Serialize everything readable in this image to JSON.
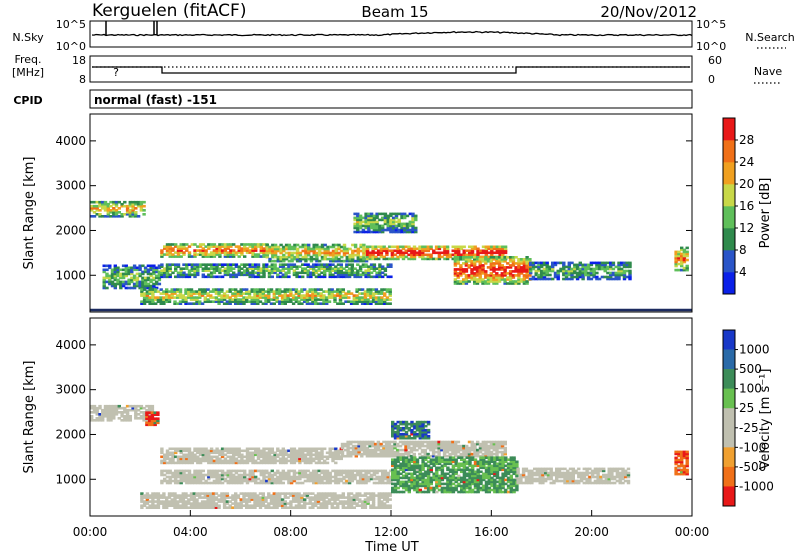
{
  "header": {
    "station": "Kerguelen (fitACF)",
    "beam": "Beam 15",
    "date": "20/Nov/2012"
  },
  "nsky_panel": {
    "left_label": "N.Sky",
    "right_label": "N.Search",
    "left_ticks": [
      "10^5",
      "10^0"
    ],
    "right_ticks": [
      "10^5",
      "10^0"
    ]
  },
  "freq_panel": {
    "left_label_line1": "Freq.",
    "left_label_line2": "[MHz]",
    "right_label": "Nave",
    "left_ticks": [
      "18",
      "8"
    ],
    "right_ticks": [
      "60",
      "0"
    ],
    "marker": "?"
  },
  "cpid": {
    "label": "CPID",
    "value": "normal (fast) -151"
  },
  "chart_data": [
    {
      "type": "heatmap",
      "name": "power",
      "ylabel": "Slant Range [km]",
      "yticks": [
        "1000",
        "2000",
        "3000",
        "4000"
      ],
      "ylim": [
        180,
        4600
      ],
      "xlim": [
        0,
        24
      ],
      "colorbar_label": "Power [dB]",
      "colorbar_ticks": [
        "4",
        "8",
        "12",
        "16",
        "20",
        "24",
        "28"
      ],
      "colorbar_colors": [
        "#0a20e8",
        "#2a55c8",
        "#2f8a4c",
        "#5fbf5a",
        "#c8d848",
        "#f0a020",
        "#f07018",
        "#e81818"
      ],
      "bands": [
        {
          "t0": 0.0,
          "t1": 2.2,
          "r0": 2300,
          "r1": 2650,
          "level": 0.6
        },
        {
          "t0": 0.5,
          "t1": 2.8,
          "r0": 700,
          "r1": 1200,
          "level": 0.4
        },
        {
          "t0": 2.8,
          "t1": 7.0,
          "r0": 1400,
          "r1": 1700,
          "level": 0.75
        },
        {
          "t0": 7.0,
          "t1": 11.0,
          "r0": 1300,
          "r1": 1700,
          "level": 0.6
        },
        {
          "t0": 11.0,
          "t1": 16.5,
          "r0": 1350,
          "r1": 1650,
          "level": 0.9
        },
        {
          "t0": 2.8,
          "t1": 12.0,
          "r0": 950,
          "r1": 1250,
          "level": 0.4
        },
        {
          "t0": 2.0,
          "t1": 12.0,
          "r0": 350,
          "r1": 700,
          "level": 0.55
        },
        {
          "t0": 14.5,
          "t1": 17.5,
          "r0": 800,
          "r1": 1400,
          "level": 0.85
        },
        {
          "t0": 17.5,
          "t1": 21.5,
          "r0": 900,
          "r1": 1300,
          "level": 0.35
        },
        {
          "t0": 23.3,
          "t1": 23.8,
          "r0": 1100,
          "r1": 1600,
          "level": 0.7
        },
        {
          "t0": 10.5,
          "t1": 13.0,
          "r0": 1950,
          "r1": 2400,
          "level": 0.4
        }
      ]
    },
    {
      "type": "heatmap",
      "name": "velocity",
      "ylabel": "Slant Range [km]",
      "yticks": [
        "1000",
        "2000",
        "3000",
        "4000"
      ],
      "ylim": [
        180,
        4600
      ],
      "xlim": [
        0,
        24
      ],
      "xlabel": "Time UT",
      "xticks": [
        "00:00",
        "04:00",
        "08:00",
        "12:00",
        "16:00",
        "20:00",
        "00:00"
      ],
      "colorbar_label": "Velocity [m s⁻¹]",
      "colorbar_ticks": [
        "1000",
        "500",
        "100",
        "25",
        "-25",
        "-100",
        "-500",
        "-1000"
      ],
      "colorbar_colors": [
        "#1838c8",
        "#2a6aa8",
        "#3c8c58",
        "#68c050",
        "#c0c0b0",
        "#c0c0b0",
        "#f0a030",
        "#f07018",
        "#e81818"
      ],
      "bands": [
        {
          "t0": 0.0,
          "t1": 2.5,
          "r0": 2300,
          "r1": 2650,
          "v": 0
        },
        {
          "t0": 2.2,
          "t1": 2.7,
          "r0": 2200,
          "r1": 2500,
          "v": -800
        },
        {
          "t0": 2.8,
          "t1": 10.0,
          "r0": 1350,
          "r1": 1700,
          "v": 0
        },
        {
          "t0": 10.0,
          "t1": 16.5,
          "r0": 1500,
          "r1": 1850,
          "v": 0
        },
        {
          "t0": 2.8,
          "t1": 12.0,
          "r0": 900,
          "r1": 1200,
          "v": 0
        },
        {
          "t0": 2.0,
          "t1": 12.0,
          "r0": 350,
          "r1": 700,
          "v": 0
        },
        {
          "t0": 12.0,
          "t1": 17.0,
          "r0": 700,
          "r1": 1500,
          "v": 300
        },
        {
          "t0": 12.0,
          "t1": 13.5,
          "r0": 1900,
          "r1": 2300,
          "v": 600
        },
        {
          "t0": 17.0,
          "t1": 21.5,
          "r0": 900,
          "r1": 1250,
          "v": 0
        },
        {
          "t0": 23.3,
          "t1": 23.8,
          "r0": 1100,
          "r1": 1600,
          "v": -600
        }
      ]
    }
  ]
}
